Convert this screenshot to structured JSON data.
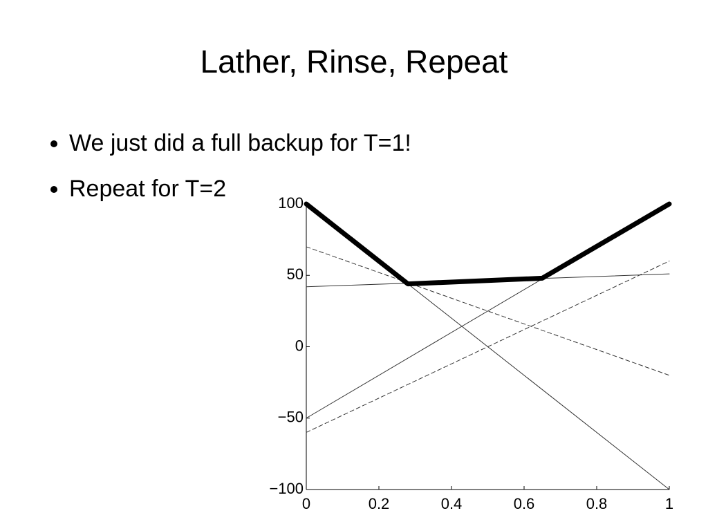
{
  "slide": {
    "title": "Lather, Rinse, Repeat",
    "bullets": [
      "We just did a full backup for T=1!",
      "Repeat for T=2"
    ]
  },
  "chart_data": {
    "type": "line",
    "xlim": [
      0,
      1
    ],
    "xticks": [
      0,
      0.2,
      0.4,
      0.6,
      0.8,
      1
    ],
    "ylim": [
      -100,
      100
    ],
    "yticks": [
      {
        "value": -100,
        "label": "−100"
      },
      {
        "value": -50,
        "label": "−50"
      },
      0,
      50,
      100
    ],
    "series": [
      {
        "color": "#333333",
        "dash": false,
        "width": 1,
        "x": [
          0,
          1
        ],
        "values": [
          100,
          -100
        ]
      },
      {
        "color": "#333333",
        "dash": false,
        "width": 1,
        "x": [
          0,
          1
        ],
        "values": [
          42,
          51
        ]
      },
      {
        "color": "#333333",
        "dash": false,
        "width": 1,
        "x": [
          0,
          1
        ],
        "values": [
          -50,
          100
        ]
      },
      {
        "color": "#333333",
        "dash": true,
        "width": 1,
        "x": [
          0,
          1
        ],
        "values": [
          70,
          -20
        ]
      },
      {
        "color": "#333333",
        "dash": true,
        "width": 1,
        "x": [
          0,
          1
        ],
        "values": [
          -60,
          60
        ]
      },
      {
        "color": "#000000",
        "dash": false,
        "width": 7,
        "x": [
          0,
          0.28,
          0.65,
          1
        ],
        "values": [
          100,
          44,
          48,
          100
        ]
      }
    ]
  }
}
